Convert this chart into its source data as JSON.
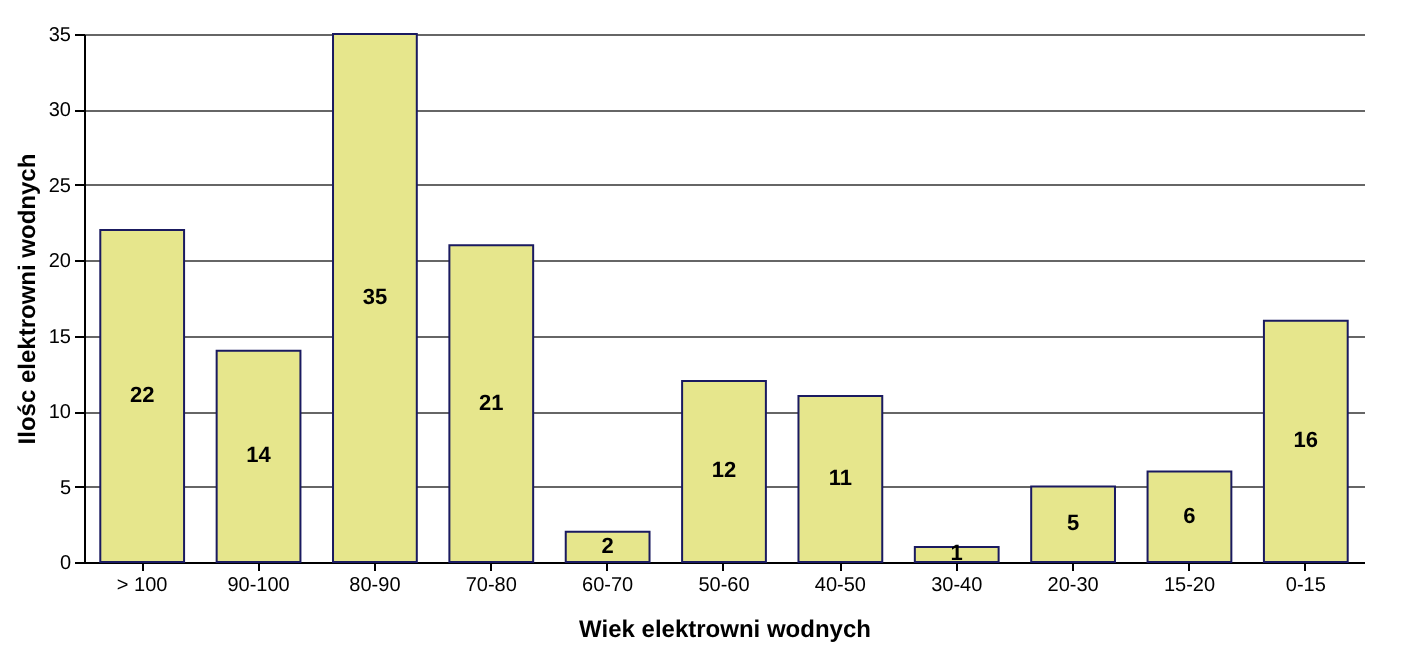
{
  "chart_data": {
    "type": "bar",
    "xlabel": "Wiek elektrowni wodnych",
    "ylabel": "Ilośc elektrowni wodnych",
    "categories": [
      "> 100",
      "90-100",
      "80-90",
      "70-80",
      "60-70",
      "50-60",
      "40-50",
      "30-40",
      "20-30",
      "15-20",
      "0-15"
    ],
    "values": [
      22,
      14,
      35,
      21,
      2,
      12,
      11,
      1,
      5,
      6,
      16
    ],
    "color": "#e6e68c",
    "ylim": [
      0,
      35
    ],
    "yticks": [
      0,
      5,
      10,
      15,
      20,
      25,
      30,
      35
    ],
    "grid": true,
    "data_labels": true
  }
}
